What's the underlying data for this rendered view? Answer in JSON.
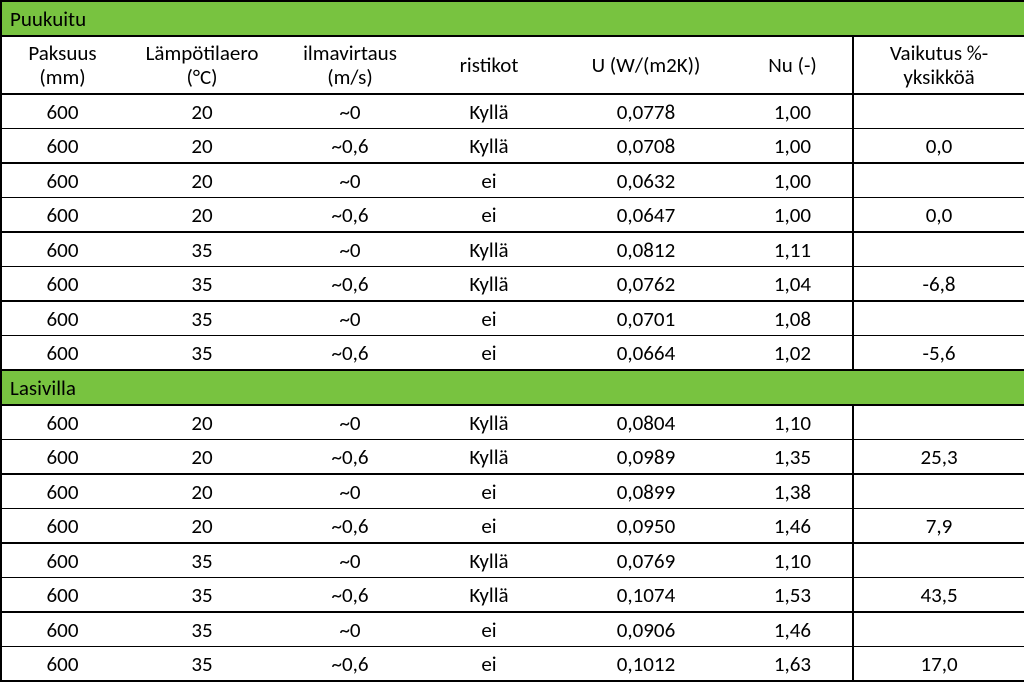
{
  "colors": {
    "section_bg": "#78c340",
    "text": "#000000",
    "background": "#ffffff",
    "border": "#000000"
  },
  "typography": {
    "font_family": "Calibri",
    "body_fontsize": 21,
    "section_fontsize": 21
  },
  "columns": {
    "col1": {
      "line1": "Paksuus",
      "line2": "(mm)"
    },
    "col2": {
      "line1": "Lämpötilaero",
      "line2": "(°C)"
    },
    "col3": {
      "line1": "ilmavirtaus",
      "line2": "(m/s)"
    },
    "col4": {
      "line1": "",
      "line2": "ristikot"
    },
    "col5": {
      "line1": "",
      "line2": "U (W/(m2K))"
    },
    "col6": {
      "line1": "",
      "line2": "Nu (-)"
    },
    "col7": {
      "line1": "Vaikutus %-",
      "line2": "yksikköä"
    }
  },
  "sections": [
    {
      "title": "Puukuitu",
      "groups": [
        {
          "a": [
            "600",
            "20",
            "~0",
            "Kyllä",
            "0,0778",
            "1,00",
            ""
          ],
          "b": [
            "600",
            "20",
            "~0,6",
            "Kyllä",
            "0,0708",
            "1,00",
            "0,0"
          ]
        },
        {
          "a": [
            "600",
            "20",
            "~0",
            "ei",
            "0,0632",
            "1,00",
            ""
          ],
          "b": [
            "600",
            "20",
            "~0,6",
            "ei",
            "0,0647",
            "1,00",
            "0,0"
          ]
        },
        {
          "a": [
            "600",
            "35",
            "~0",
            "Kyllä",
            "0,0812",
            "1,11",
            ""
          ],
          "b": [
            "600",
            "35",
            "~0,6",
            "Kyllä",
            "0,0762",
            "1,04",
            "-6,8"
          ]
        },
        {
          "a": [
            "600",
            "35",
            "~0",
            "ei",
            "0,0701",
            "1,08",
            ""
          ],
          "b": [
            "600",
            "35",
            "~0,6",
            "ei",
            "0,0664",
            "1,02",
            "-5,6"
          ]
        }
      ]
    },
    {
      "title": "Lasivilla",
      "groups": [
        {
          "a": [
            "600",
            "20",
            "~0",
            "Kyllä",
            "0,0804",
            "1,10",
            ""
          ],
          "b": [
            "600",
            "20",
            "~0,6",
            "Kyllä",
            "0,0989",
            "1,35",
            "25,3"
          ]
        },
        {
          "a": [
            "600",
            "20",
            "~0",
            "ei",
            "0,0899",
            "1,38",
            ""
          ],
          "b": [
            "600",
            "20",
            "~0,6",
            "ei",
            "0,0950",
            "1,46",
            "7,9"
          ]
        },
        {
          "a": [
            "600",
            "35",
            "~0",
            "Kyllä",
            "0,0769",
            "1,10",
            ""
          ],
          "b": [
            "600",
            "35",
            "~0,6",
            "Kyllä",
            "0,1074",
            "1,53",
            "43,5"
          ]
        },
        {
          "a": [
            "600",
            "35",
            "~0",
            "ei",
            "0,0906",
            "1,46",
            ""
          ],
          "b": [
            "600",
            "35",
            "~0,6",
            "ei",
            "0,1012",
            "1,63",
            "17,0"
          ]
        }
      ]
    }
  ]
}
